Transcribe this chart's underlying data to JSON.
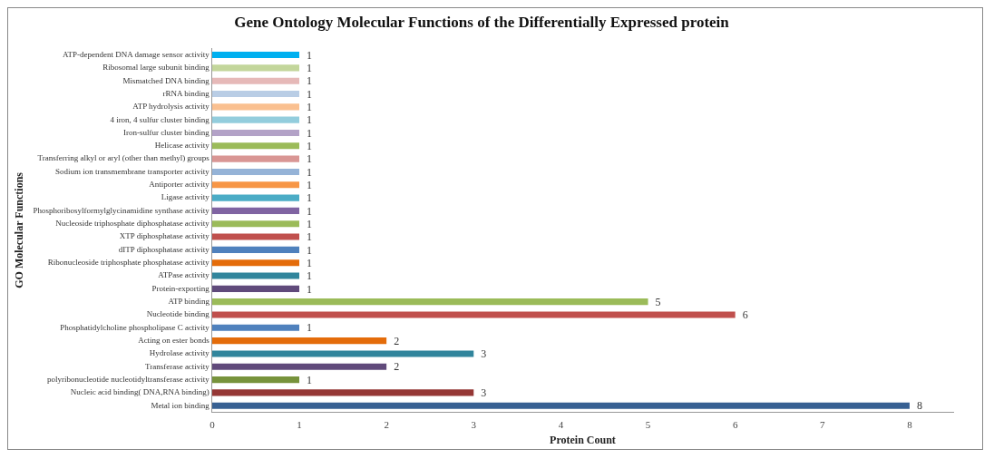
{
  "chart_data": {
    "type": "bar",
    "orientation": "horizontal",
    "title": "Gene Ontology Molecular Functions of the Differentially Expressed protein",
    "xlabel": "Protein Count",
    "ylabel": "GO Molecular Functions",
    "categories": [
      "ATP-dependent DNA damage sensor activity",
      "Ribosomal large subunit binding",
      "Mismatched DNA binding",
      "rRNA binding",
      "ATP hydrolysis activity",
      "4 iron, 4 sulfur cluster binding",
      "Iron-sulfur cluster binding",
      "Helicase activity",
      "Transferring alkyl or aryl (other than methyl) groups",
      "Sodium ion transmembrane transporter activity",
      "Antiporter activity",
      "Ligase activity",
      "Phosphoribosylformylglycinamidine synthase activity",
      "Nucleoside triphosphate diphosphatase activity",
      "XTP diphosphatase activity",
      "dITP diphosphatase activity",
      "Ribonucleoside triphosphate phosphatase activity",
      "ATPase activity",
      "Protein-exporting",
      "ATP binding",
      "Nucleotide binding",
      "Phosphatidylcholine phospholipase C activity",
      "Acting on ester bonds",
      "Hydrolase activity",
      "Transferase activity",
      "polyribonucleotide nucleotidyltransferase activity",
      "Nucleic acid binding( DNA,RNA binding)",
      "Metal ion binding"
    ],
    "values": [
      1,
      1,
      1,
      1,
      1,
      1,
      1,
      1,
      1,
      1,
      1,
      1,
      1,
      1,
      1,
      1,
      1,
      1,
      1,
      5,
      6,
      1,
      2,
      3,
      2,
      1,
      3,
      8
    ],
    "colors": [
      "#00b0f0",
      "#c3d69b",
      "#e6b9b8",
      "#b9cde5",
      "#fac090",
      "#93cddd",
      "#b3a2c7",
      "#9bbb59",
      "#d99694",
      "#95b3d7",
      "#f79646",
      "#4bacc6",
      "#8064a2",
      "#9bbb59",
      "#c0504d",
      "#4f81bd",
      "#e46c0a",
      "#31859c",
      "#604a7b",
      "#9bbb59",
      "#c0504d",
      "#4f81bd",
      "#e46c0a",
      "#31859c",
      "#604a7b",
      "#77933c",
      "#953735",
      "#376092"
    ],
    "xlim": [
      0,
      8.5
    ],
    "xticks": [
      0,
      1,
      2,
      3,
      4,
      5,
      6,
      7,
      8
    ],
    "data_labels": true,
    "grid": false,
    "legend": false
  }
}
